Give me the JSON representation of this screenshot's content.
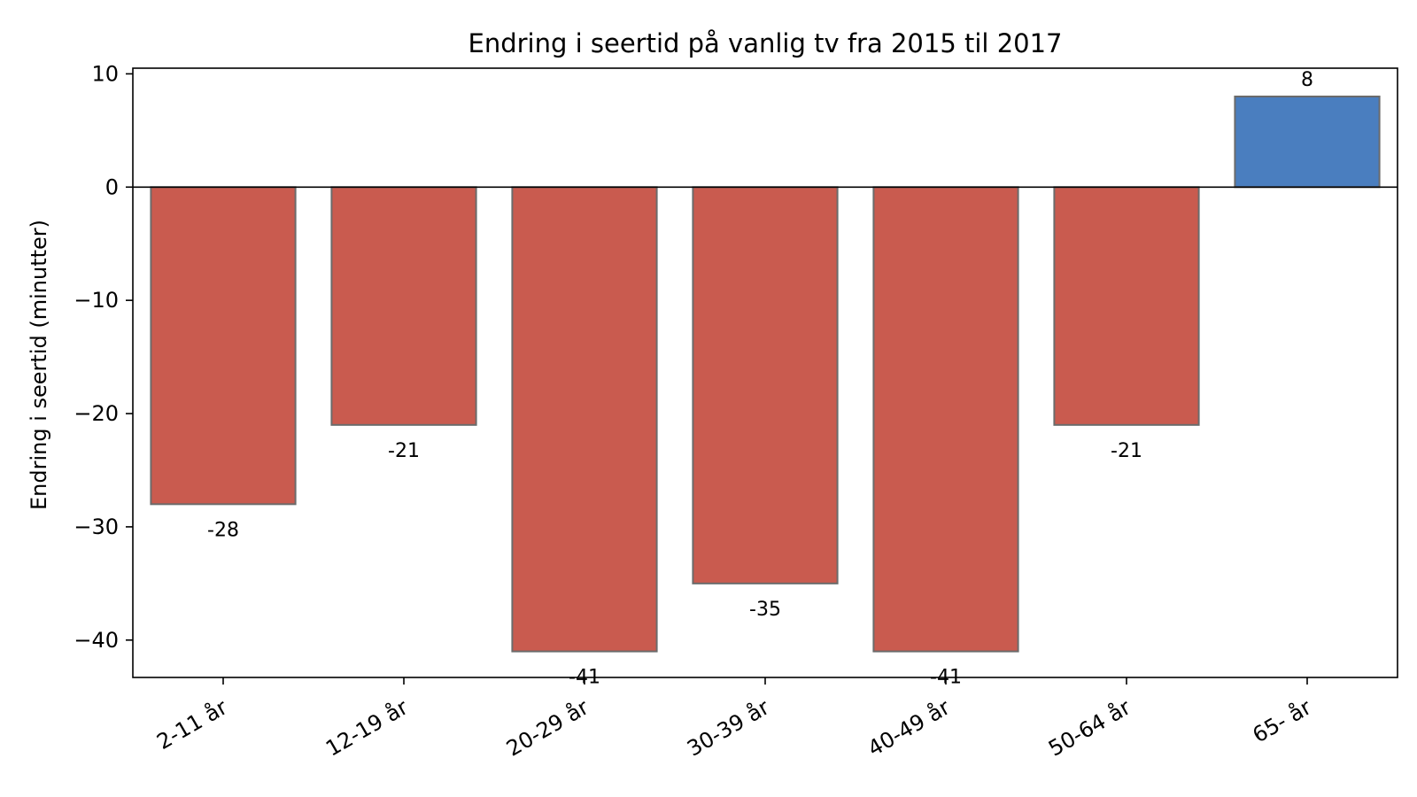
{
  "chart_data": {
    "type": "bar",
    "title": "Endring i seertid på vanlig tv fra 2015 til 2017",
    "xlabel": "",
    "ylabel": "Endring i seertid (minutter)",
    "categories": [
      "2-11 år",
      "12-19 år",
      "20-29 år",
      "30-39 år",
      "40-49 år",
      "50-64 år",
      "65- år"
    ],
    "values": [
      -28,
      -21,
      -41,
      -35,
      -41,
      -21,
      8
    ],
    "data_labels": [
      "-28",
      "-21",
      "-41",
      "-35",
      "-41",
      "-21",
      "8"
    ],
    "ylim": [
      -43.3,
      10.5
    ],
    "yticks": [
      10,
      0,
      -10,
      -20,
      -30,
      -40
    ],
    "ytick_labels": [
      "10",
      "0",
      "−10",
      "−20",
      "−30",
      "−40"
    ],
    "grid": false,
    "legend": "none",
    "colors": {
      "negative": "#c95b4f",
      "positive": "#4a7ebf",
      "bar_edge": "#6b6b6b",
      "zero_line": "#000000"
    }
  }
}
